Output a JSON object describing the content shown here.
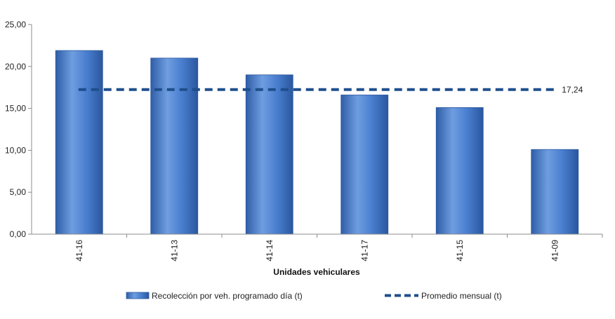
{
  "chart_data": {
    "type": "bar",
    "title": "",
    "xlabel": "Unidades vehiculares",
    "ylabel": "",
    "ylim": [
      0,
      25
    ],
    "yticks": [
      "0,00",
      "5,00",
      "10,00",
      "15,00",
      "20,00",
      "25,00"
    ],
    "ytick_values": [
      0,
      5,
      10,
      15,
      20,
      25
    ],
    "categories": [
      "41-16",
      "41-13",
      "41-14",
      "41-17",
      "41-15",
      "41-09"
    ],
    "series": [
      {
        "name": "Recolección por veh. programado día (t)",
        "type": "bar",
        "values": [
          21.9,
          21.0,
          19.0,
          16.6,
          15.1,
          10.1
        ],
        "color": "#3a6fc4"
      },
      {
        "name": "Promedio mensual (t)",
        "type": "line",
        "style": "dashed",
        "value": 17.24,
        "label": "17,24",
        "color": "#1f4e8c"
      }
    ],
    "grid": false,
    "legend": "bottom"
  }
}
